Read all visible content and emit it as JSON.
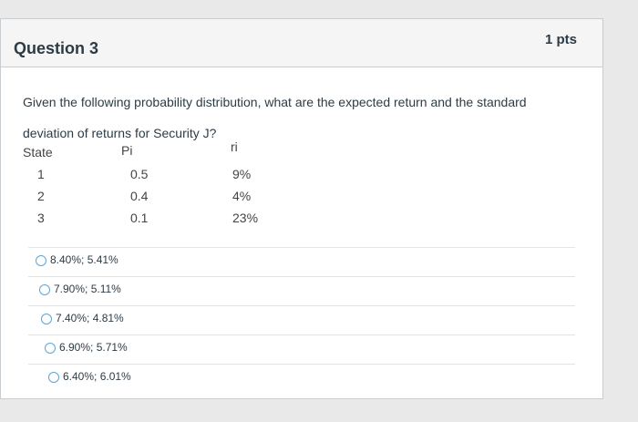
{
  "question": {
    "title": "Question 3",
    "points": "1 pts",
    "text": "Given the following probability distribution, what are the expected return and the standard deviation of returns for Security J?"
  },
  "table": {
    "headers": [
      "State",
      "Pi",
      "ri"
    ],
    "rows": [
      [
        "1",
        "0.5",
        "9%"
      ],
      [
        "2",
        "0.4",
        "4%"
      ],
      [
        "3",
        "0.1",
        "23%"
      ]
    ]
  },
  "options": [
    "8.40%; 5.41%",
    "7.90%; 5.11%",
    "7.40%; 4.81%",
    "6.90%; 5.71%",
    "6.40%; 6.01%"
  ],
  "colors": {
    "accent": "#5aa6d6",
    "text": "#2d3b45",
    "header_bg": "#f5f5f5"
  }
}
